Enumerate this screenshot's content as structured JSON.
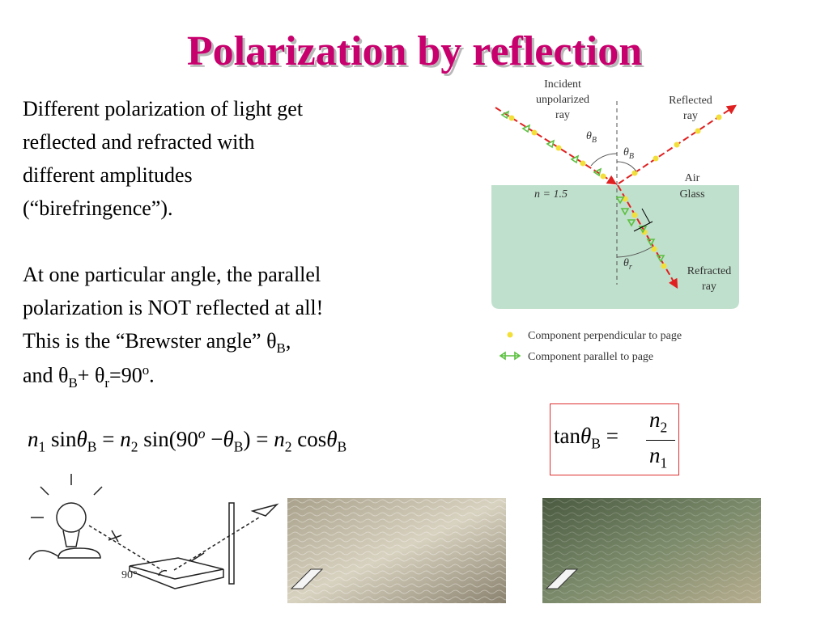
{
  "title": "Polarization by reflection",
  "paragraph1": [
    "Different polarization of light get",
    "reflected and refracted with",
    "different amplitudes",
    "(“birefringence”)."
  ],
  "paragraph2": {
    "lines": [
      "At one particular angle, the parallel",
      "polarization is NOT reflected at all!"
    ],
    "line3": [
      "This is the “Brewster angle” θ",
      "B",
      ","
    ],
    "line4": [
      "and θ",
      "B",
      "+ θ",
      "r",
      "=90",
      "o",
      "."
    ]
  },
  "equation1": [
    "n",
    "1",
    "sin",
    "θ",
    "B",
    "=",
    "n",
    "2",
    "sin(",
    "90",
    "o",
    "−",
    "θ",
    "B",
    ")",
    "=",
    "n",
    "2",
    "cos",
    "θ",
    "B"
  ],
  "equation2": [
    "tan",
    "θ",
    "B",
    "=",
    "n",
    "2",
    "n",
    "1"
  ],
  "diagram": {
    "incident": [
      "Incident",
      "unpolarized",
      "ray"
    ],
    "reflected": [
      "Reflected",
      "ray"
    ],
    "air": "Air",
    "glass": "Glass",
    "index": "n = 1.5",
    "theta_b_1": [
      "θ",
      "B"
    ],
    "theta_b_2": [
      "θ",
      "B"
    ],
    "theta_r": [
      "θ",
      "r"
    ],
    "refracted": [
      "Refracted",
      "ray"
    ]
  },
  "legend": [
    "Component perpendicular to page",
    "Component parallel to page"
  ],
  "sketch_angle": "90°"
}
